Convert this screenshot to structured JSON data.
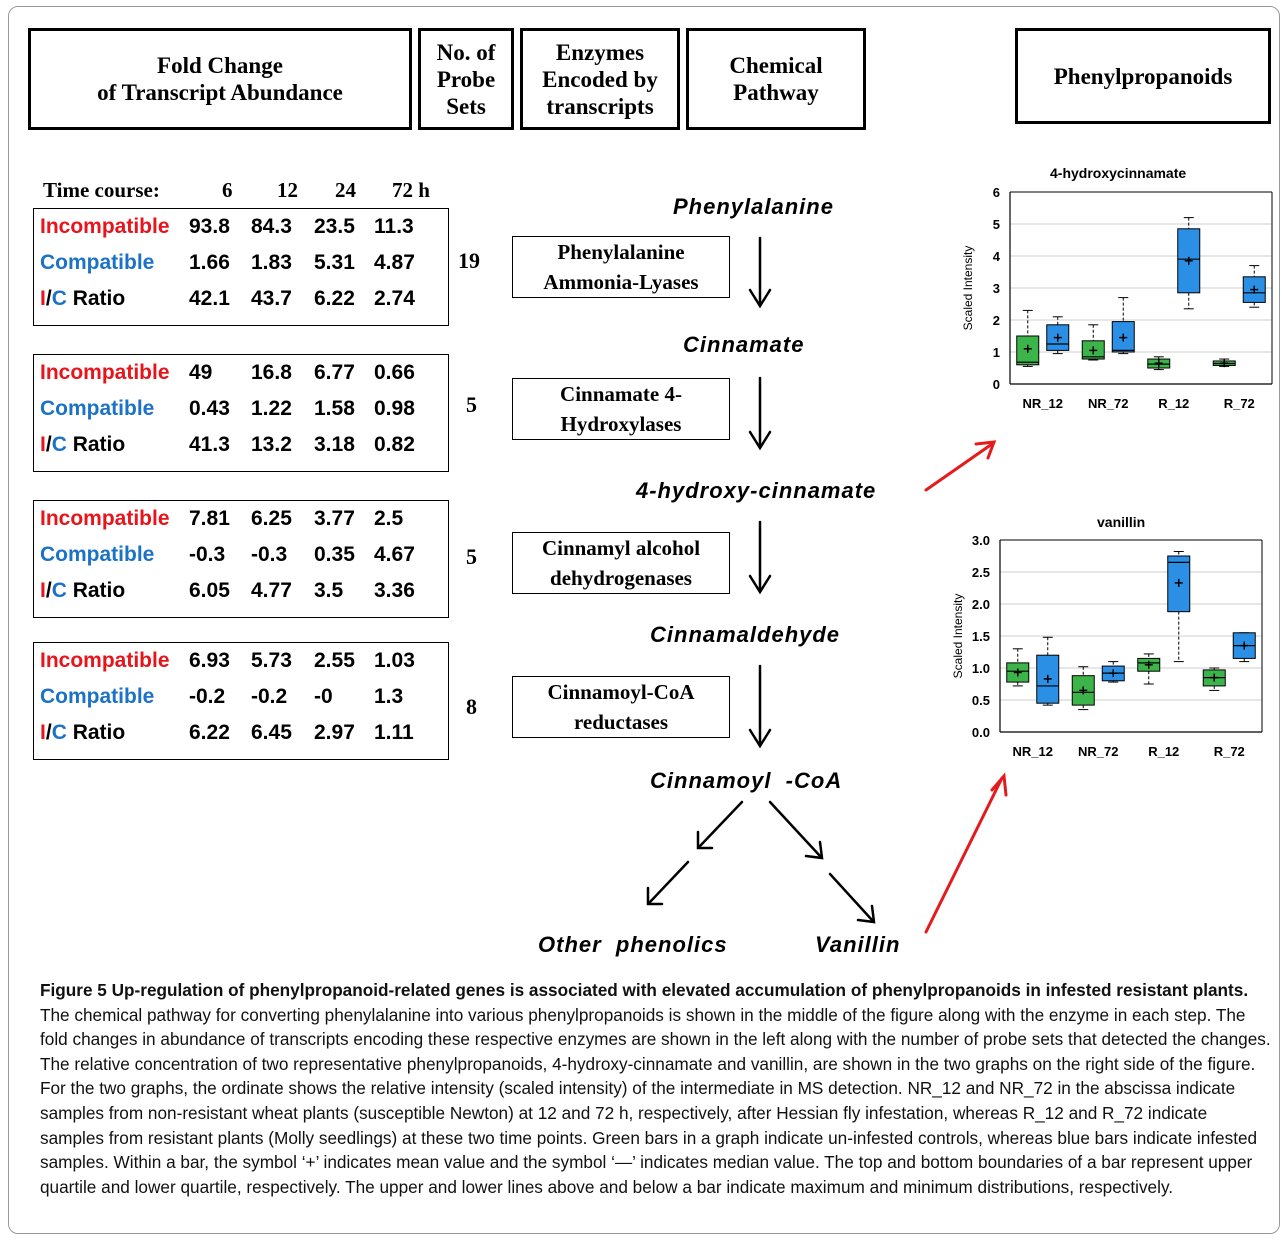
{
  "headers": {
    "fold_change": "Fold Change\nof Transcript Abundance",
    "probe_sets": "No. of\nProbe\nSets",
    "enzymes": "Enzymes\nEncoded by\ntranscripts",
    "pathway": "Chemical\nPathway",
    "phenylpropanoids": "Phenylpropanoids"
  },
  "time_course": {
    "label": "Time course:",
    "times": [
      "6",
      "12",
      "24",
      "72 h"
    ]
  },
  "row_labels": {
    "incompatible": "Incompatible",
    "compatible": "Compatible",
    "ratio_i": "I",
    "ratio_slash": "/",
    "ratio_c": "C",
    "ratio_rest": " Ratio"
  },
  "tables": [
    {
      "incompatible": [
        "93.8",
        "84.3",
        "23.5",
        "11.3"
      ],
      "compatible": [
        "1.66",
        "1.83",
        "5.31",
        "4.87"
      ],
      "ratio": [
        "42.1",
        "43.7",
        "6.22",
        "2.74"
      ],
      "probe_sets": "19",
      "enzyme": "Phenylalanine\nAmmonia-Lyases"
    },
    {
      "incompatible": [
        "49",
        "16.8",
        "6.77",
        "0.66"
      ],
      "compatible": [
        "0.43",
        "1.22",
        "1.58",
        "0.98"
      ],
      "ratio": [
        "41.3",
        "13.2",
        "3.18",
        "0.82"
      ],
      "probe_sets": "5",
      "enzyme": "Cinnamate 4-\nHydroxylases"
    },
    {
      "incompatible": [
        "7.81",
        "6.25",
        "3.77",
        "2.5"
      ],
      "compatible": [
        "-0.3",
        "-0.3",
        "0.35",
        "4.67"
      ],
      "ratio": [
        "6.05",
        "4.77",
        "3.5",
        "3.36"
      ],
      "probe_sets": "5",
      "enzyme": "Cinnamyl alcohol\ndehydrogenases"
    },
    {
      "incompatible": [
        "6.93",
        "5.73",
        "2.55",
        "1.03"
      ],
      "compatible": [
        "-0.2",
        "-0.2",
        "-0",
        "1.3"
      ],
      "ratio": [
        "6.22",
        "6.45",
        "2.97",
        "1.11"
      ],
      "probe_sets": "8",
      "enzyme": "Cinnamoyl-CoA\nreductases"
    }
  ],
  "pathway": {
    "phenylalanine": "Phenylalanine",
    "cinnamate": "Cinnamate",
    "hydroxycinnamate": "4-hydroxy-cinnamate",
    "cinnamaldehyde": "Cinnamaldehyde",
    "cinnamoyl_coa": "Cinnamoyl  -CoA",
    "other_phenolics": "Other  phenolics",
    "vanillin": "Vanillin"
  },
  "colors": {
    "uninfested": "#3cb44a",
    "infested": "#2b8fe6",
    "arrow_red": "#e41a1c",
    "incompatible": "#e8141b",
    "compatible": "#1c72c6"
  },
  "chart_data": [
    {
      "type": "box",
      "title": "4-hydroxycinnamate",
      "ylabel": "Scaled Intensity",
      "ylim": [
        0,
        6
      ],
      "yticks": [
        "0",
        "1",
        "2",
        "3",
        "4",
        "5",
        "6"
      ],
      "categories": [
        "NR_12",
        "NR_72",
        "R_12",
        "R_72"
      ],
      "series": [
        {
          "color": "#3cb44a",
          "boxes": [
            {
              "min": 0.55,
              "q1": 0.6,
              "median": 0.68,
              "mean": 1.1,
              "q3": 1.5,
              "max": 2.3
            },
            {
              "min": 0.75,
              "q1": 0.78,
              "median": 0.85,
              "mean": 1.05,
              "q3": 1.35,
              "max": 1.85
            },
            {
              "min": 0.45,
              "q1": 0.5,
              "median": 0.62,
              "mean": 0.65,
              "q3": 0.78,
              "max": 0.85
            },
            {
              "min": 0.55,
              "q1": 0.58,
              "median": 0.64,
              "mean": 0.65,
              "q3": 0.72,
              "max": 0.78
            }
          ]
        },
        {
          "color": "#2b8fe6",
          "boxes": [
            {
              "min": 0.95,
              "q1": 1.05,
              "median": 1.25,
              "mean": 1.45,
              "q3": 1.85,
              "max": 2.1
            },
            {
              "min": 0.95,
              "q1": 1.0,
              "median": 1.05,
              "mean": 1.45,
              "q3": 1.95,
              "max": 2.7
            },
            {
              "min": 2.35,
              "q1": 2.85,
              "median": 3.9,
              "mean": 3.85,
              "q3": 4.85,
              "max": 5.2
            },
            {
              "min": 2.4,
              "q1": 2.55,
              "median": 2.85,
              "mean": 2.95,
              "q3": 3.35,
              "max": 3.7
            }
          ]
        }
      ]
    },
    {
      "type": "box",
      "title": "vanillin",
      "ylabel": "Scaled Intensity",
      "ylim": [
        0,
        3
      ],
      "yticks": [
        "0.0",
        "0.5",
        "1.0",
        "1.5",
        "2.0",
        "2.5",
        "3.0"
      ],
      "categories": [
        "NR_12",
        "NR_72",
        "R_12",
        "R_72"
      ],
      "series": [
        {
          "color": "#3cb44a",
          "boxes": [
            {
              "min": 0.72,
              "q1": 0.78,
              "median": 0.95,
              "mean": 0.93,
              "q3": 1.08,
              "max": 1.3
            },
            {
              "min": 0.35,
              "q1": 0.42,
              "median": 0.62,
              "mean": 0.65,
              "q3": 0.88,
              "max": 1.02
            },
            {
              "min": 0.75,
              "q1": 0.95,
              "median": 1.08,
              "mean": 1.05,
              "q3": 1.15,
              "max": 1.22
            },
            {
              "min": 0.65,
              "q1": 0.72,
              "median": 0.85,
              "mean": 0.85,
              "q3": 0.97,
              "max": 1.0
            }
          ]
        },
        {
          "color": "#2b8fe6",
          "boxes": [
            {
              "min": 0.42,
              "q1": 0.45,
              "median": 0.72,
              "mean": 0.83,
              "q3": 1.2,
              "max": 1.48
            },
            {
              "min": 0.78,
              "q1": 0.8,
              "median": 0.92,
              "mean": 0.92,
              "q3": 1.03,
              "max": 1.1
            },
            {
              "min": 1.1,
              "q1": 1.88,
              "median": 2.65,
              "mean": 2.33,
              "q3": 2.75,
              "max": 2.82
            },
            {
              "min": 1.1,
              "q1": 1.15,
              "median": 1.35,
              "mean": 1.35,
              "q3": 1.55,
              "max": 1.55
            }
          ]
        }
      ]
    }
  ],
  "caption": {
    "title": "Figure 5 Up-regulation of phenylpropanoid-related genes is associated with elevated accumulation of phenylpropanoids in infested resistant plants.",
    "body": " The chemical pathway for converting phenylalanine into various phenylpropanoids is shown in the middle of the figure along with the enzyme in each step. The fold changes in abundance of transcripts encoding these respective enzymes are shown in the left along with the number of probe sets that detected the changes. The relative concentration of two representative phenylpropanoids, 4-hydroxy-cinnamate and vanillin, are shown in the two graphs on the right side of the figure. For the two graphs, the ordinate shows the relative intensity (scaled intensity) of the intermediate in MS detection. NR_12 and NR_72 in the abscissa indicate samples from non-resistant wheat plants (susceptible Newton) at 12 and 72 h, respectively, after Hessian fly infestation, whereas R_12 and R_72 indicate samples from resistant plants (Molly seedlings) at these two time points. Green bars in a graph indicate un-infested controls, whereas blue bars indicate infested samples. Within a bar, the symbol ‘+’ indicates mean value and the symbol ‘—’ indicates median value. The top and bottom boundaries of a bar represent upper quartile and lower quartile, respectively. The upper and lower lines above and below a bar indicate maximum and minimum distributions, respectively."
  }
}
